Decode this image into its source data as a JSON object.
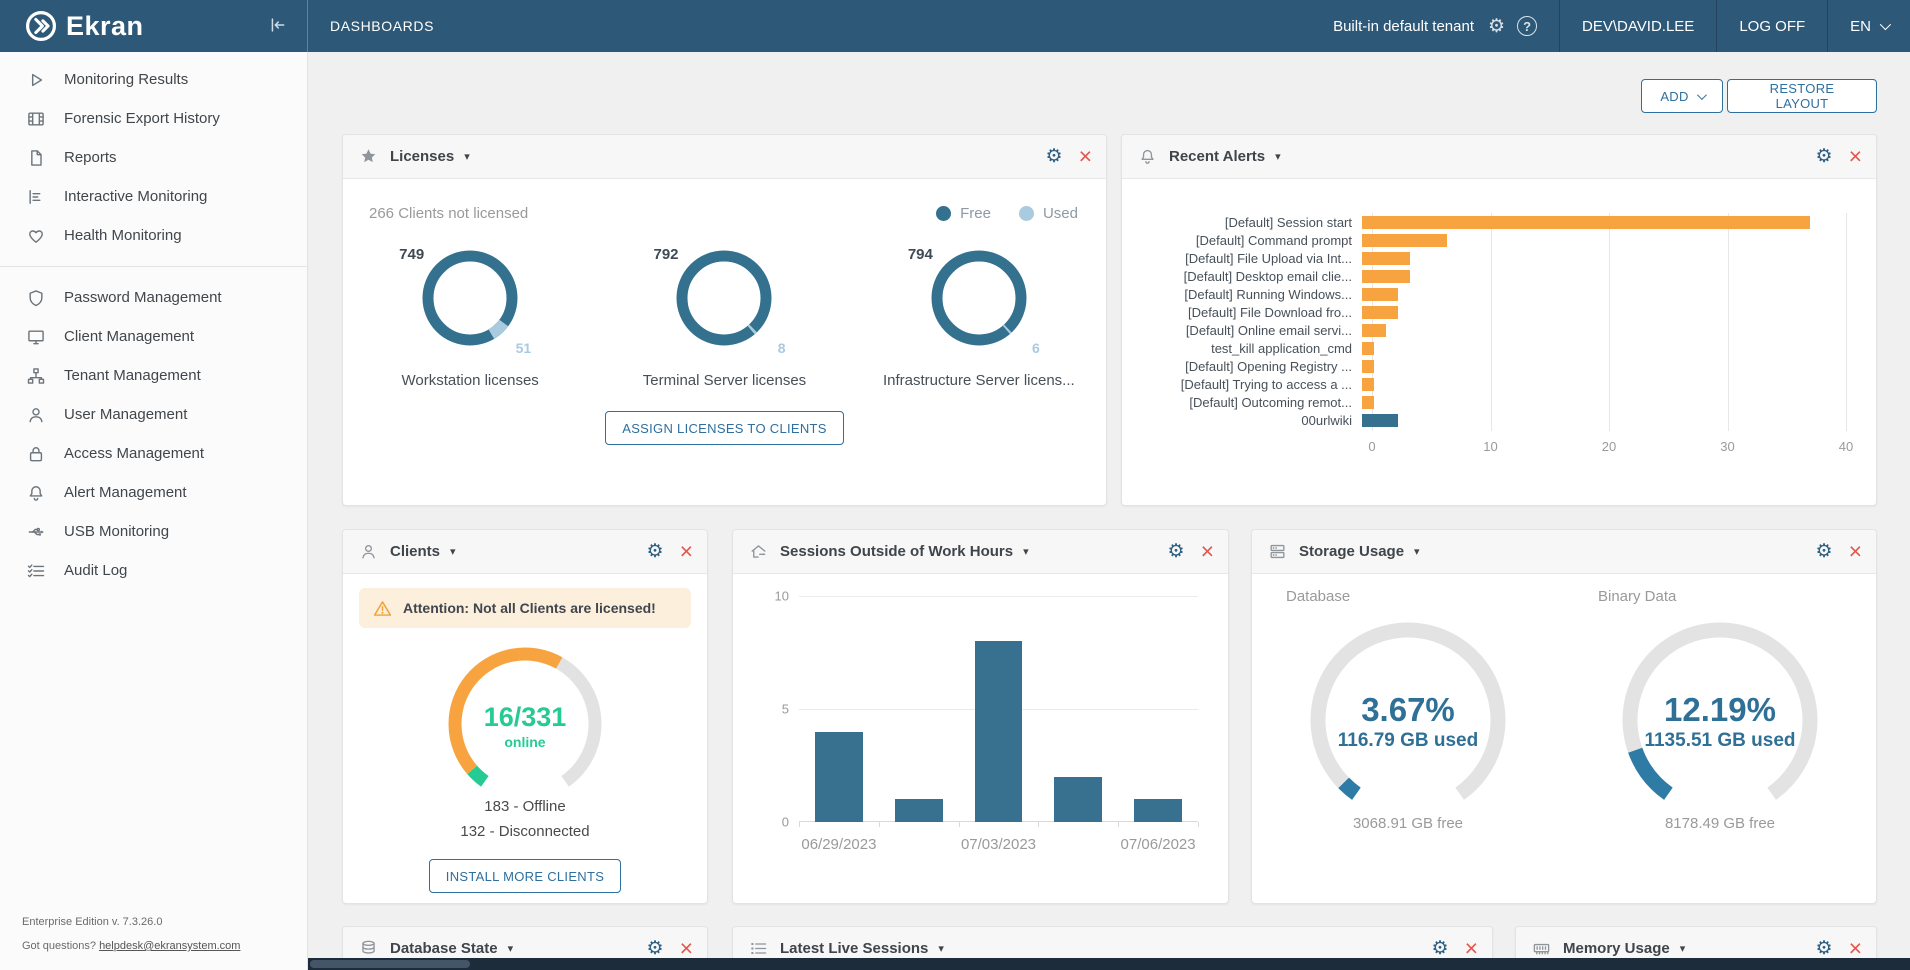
{
  "topbar": {
    "brand": "Ekran",
    "page_title": "DASHBOARDS",
    "tenant_label": "Built-in default tenant",
    "user": "DEV\\DAVID.LEE",
    "logoff_label": "LOG OFF",
    "language": "EN"
  },
  "toolbar": {
    "add_label": "ADD",
    "restore_label": "RESTORE LAYOUT"
  },
  "sidebar": {
    "groups": [
      {
        "items": [
          {
            "icon": "play-icon",
            "label": "Monitoring Results"
          },
          {
            "icon": "film-icon",
            "label": "Forensic Export History"
          },
          {
            "icon": "document-icon",
            "label": "Reports"
          },
          {
            "icon": "chart-icon",
            "label": "Interactive Monitoring"
          },
          {
            "icon": "heart-icon",
            "label": "Health Monitoring"
          }
        ]
      },
      {
        "items": [
          {
            "icon": "shield-icon",
            "label": "Password Management"
          },
          {
            "icon": "monitor-icon",
            "label": "Client Management"
          },
          {
            "icon": "sitemap-icon",
            "label": "Tenant Management"
          },
          {
            "icon": "user-icon",
            "label": "User Management"
          },
          {
            "icon": "lock-icon",
            "label": "Access Management"
          },
          {
            "icon": "bell-icon",
            "label": "Alert Management"
          },
          {
            "icon": "usb-icon",
            "label": "USB Monitoring"
          },
          {
            "icon": "checklist-icon",
            "label": "Audit Log"
          }
        ]
      }
    ],
    "footer_version": "Enterprise Edition v. 7.3.26.0",
    "footer_question": "Got questions?",
    "footer_link": "helpdesk@ekransystem.com"
  },
  "widgets": {
    "licenses": {
      "title": "Licenses",
      "not_licensed": "266 Clients not licensed",
      "legend": [
        {
          "label": "Free",
          "color": "#34718e"
        },
        {
          "label": "Used",
          "color": "#a9cbe0"
        }
      ],
      "assign_button": "ASSIGN LICENSES TO CLIENTS",
      "chart_data": {
        "type": "donut",
        "free_color": "#34718e",
        "used_color": "#a9cbe0",
        "series": [
          {
            "label": "Workstation licenses",
            "free": 749,
            "used": 51
          },
          {
            "label": "Terminal Server licenses",
            "free": 792,
            "used": 8
          },
          {
            "label": "Infrastructure Server licens...",
            "free": 794,
            "used": 6
          }
        ]
      }
    },
    "recent_alerts": {
      "title": "Recent Alerts",
      "chart_data": {
        "type": "bar",
        "orientation": "horizontal",
        "xlim": [
          0,
          40
        ],
        "xticks": [
          0,
          10,
          20,
          30,
          40
        ],
        "items": [
          {
            "label": "[Default] Session start",
            "value": 37,
            "color": "#f7a440"
          },
          {
            "label": "[Default] Command prompt",
            "value": 7,
            "color": "#f7a440"
          },
          {
            "label": "[Default] File Upload via Int...",
            "value": 4,
            "color": "#f7a440"
          },
          {
            "label": "[Default] Desktop email clie...",
            "value": 4,
            "color": "#f7a440"
          },
          {
            "label": "[Default] Running Windows...",
            "value": 3,
            "color": "#f7a440"
          },
          {
            "label": "[Default] File Download fro...",
            "value": 3,
            "color": "#f7a440"
          },
          {
            "label": "[Default] Online email servi...",
            "value": 2,
            "color": "#f7a440"
          },
          {
            "label": "test_kill application_cmd",
            "value": 1,
            "color": "#f7a440"
          },
          {
            "label": "[Default] Opening Registry ...",
            "value": 1,
            "color": "#f7a440"
          },
          {
            "label": "[Default] Trying to access a ...",
            "value": 1,
            "color": "#f7a440"
          },
          {
            "label": "[Default] Outcoming remot...",
            "value": 1,
            "color": "#f7a440"
          },
          {
            "label": "00urlwiki",
            "value": 3,
            "color": "#36708f"
          }
        ]
      }
    },
    "clients": {
      "title": "Clients",
      "warning": "Attention: Not all Clients are licensed!",
      "gauge": {
        "online": 16,
        "total": 331,
        "offline": 183,
        "disconnected": 132,
        "online_label": "16/331",
        "center_sub": "online",
        "offline_text": "183 - Offline",
        "disconnected_text": "132 - Disconnected",
        "colors": {
          "online": "#25cb92",
          "offline": "#f7a440",
          "disconnected": "#e2e2e2"
        }
      },
      "install_button": "INSTALL MORE CLIENTS"
    },
    "sessions": {
      "title": "Sessions Outside of Work Hours",
      "chart_data": {
        "type": "bar",
        "values": [
          4,
          1,
          8,
          2,
          1
        ],
        "x_labels": [
          "06/29/2023",
          "",
          "07/03/2023",
          "",
          "07/06/2023"
        ],
        "ylim": [
          0,
          10
        ],
        "yticks": [
          0,
          5,
          10
        ],
        "bar_color": "#38718f"
      }
    },
    "storage": {
      "title": "Storage Usage",
      "colors": {
        "used": "#2e7ca6",
        "track": "#e3e3e3"
      },
      "gauges": [
        {
          "label": "Database",
          "percent": "3.67%",
          "percent_value": 3.67,
          "used": "116.79 GB used",
          "free": "3068.91 GB free"
        },
        {
          "label": "Binary Data",
          "percent": "12.19%",
          "percent_value": 12.19,
          "used": "1135.51 GB used",
          "free": "8178.49 GB free"
        }
      ]
    },
    "database_state": {
      "title": "Database State"
    },
    "latest_live_sessions": {
      "title": "Latest Live Sessions"
    },
    "memory_usage": {
      "title": "Memory Usage"
    }
  }
}
